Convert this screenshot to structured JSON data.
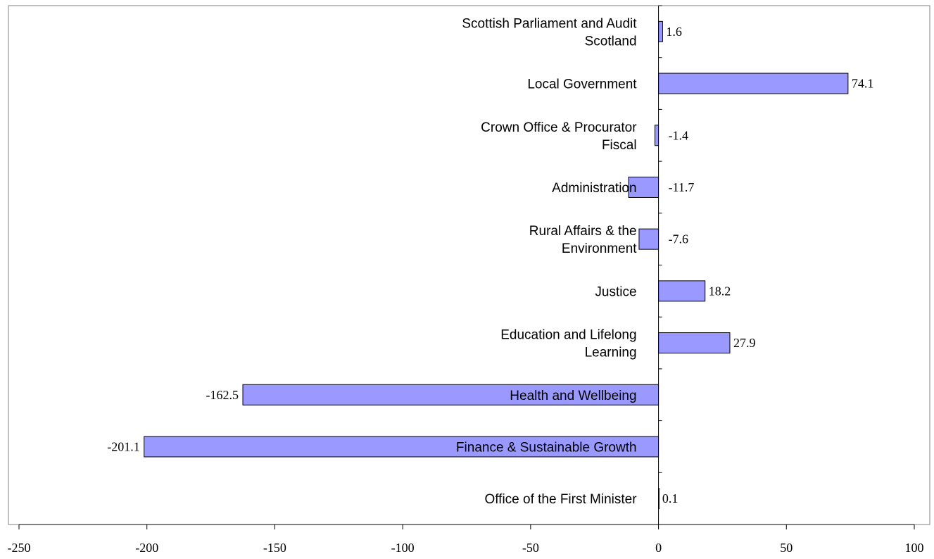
{
  "chart_data": {
    "type": "bar",
    "orientation": "horizontal",
    "title": "",
    "xlabel": "",
    "ylabel": "",
    "xlim": [
      -250,
      100
    ],
    "x_ticks": [
      -250,
      -200,
      -150,
      -100,
      -50,
      0,
      50,
      100
    ],
    "x_tick_labels": [
      "-250",
      "-200",
      "-150",
      "-100",
      "-50",
      "0",
      "50",
      "100"
    ],
    "categories": [
      "Scottish Parliament and Audit Scotland",
      "Local Government",
      "Crown Office & Procurator Fiscal",
      "Administration",
      "Rural Affairs & the Environment",
      "Justice",
      "Education and Lifelong Learning",
      "Health and Wellbeing",
      "Finance & Sustainable Growth",
      "Office of the First Minister"
    ],
    "category_label_lines": [
      [
        "Scottish Parliament and Audit",
        "Scotland"
      ],
      [
        "Local Government"
      ],
      [
        "Crown Office & Procurator",
        "Fiscal"
      ],
      [
        "Administration"
      ],
      [
        "Rural Affairs & the",
        "Environment"
      ],
      [
        "Justice"
      ],
      [
        "Education and Lifelong",
        "Learning"
      ],
      [
        "Health and Wellbeing"
      ],
      [
        "Finance & Sustainable Growth"
      ],
      [
        "Office of the First Minister"
      ]
    ],
    "values": [
      1.6,
      74.1,
      -1.4,
      -11.7,
      -7.6,
      18.2,
      27.9,
      -162.5,
      -201.1,
      0.1
    ],
    "value_labels": [
      "1.6",
      "74.1",
      "-1.4",
      "-11.7",
      "-7.6",
      "18.2",
      "27.9",
      "-162.5",
      "-201.1",
      "0.1"
    ],
    "grid": false,
    "legend": "none",
    "colors": {
      "bar_fill": "#9999ff",
      "bar_stroke": "#000000",
      "axis": "#000000",
      "frame": "#808080"
    }
  }
}
